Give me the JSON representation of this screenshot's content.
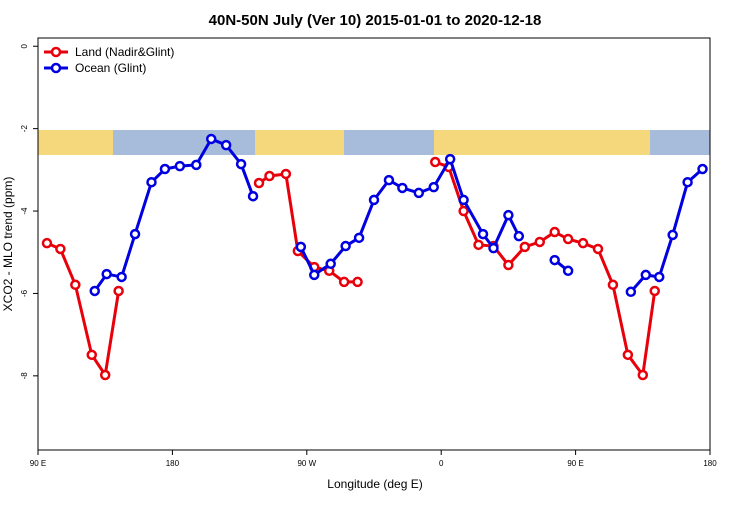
{
  "chart_data": {
    "type": "line",
    "title": "40N-50N July (Ver 10)   2015-01-01 to 2020-12-18",
    "x_label": "Longitude (deg E)",
    "y_label": "XCO2 - MLO trend (ppm)",
    "xlim": [
      90,
      540
    ],
    "xticks": [
      {
        "value": 90,
        "label": "90 E"
      },
      {
        "value": 180,
        "label": "180"
      },
      {
        "value": 270,
        "label": "90 W"
      },
      {
        "value": 360,
        "label": "0"
      },
      {
        "value": 450,
        "label": "90 E"
      },
      {
        "value": 540,
        "label": "180"
      }
    ],
    "ylim": [
      -9.8,
      0.2
    ],
    "yticks": [
      0,
      -2,
      -4,
      -6,
      -8
    ],
    "legend": "top-left",
    "series": [
      {
        "name": "Land (Nadir&Glint)",
        "color": "#e8000b",
        "x": [
          96,
          105,
          115,
          126,
          135,
          144,
          null,
          238,
          245,
          256,
          264,
          275,
          285,
          295,
          304,
          null,
          356,
          365,
          375,
          385,
          395,
          405,
          416,
          426,
          436,
          445,
          455,
          465,
          475,
          485,
          495,
          503
        ],
        "values": [
          -4.78,
          -4.92,
          -5.79,
          -7.49,
          -7.98,
          -5.94,
          null,
          -3.32,
          -3.15,
          -3.1,
          -4.97,
          -5.36,
          -5.45,
          -5.72,
          -5.72,
          null,
          -2.81,
          -2.93,
          -4.0,
          -4.82,
          -4.85,
          -5.31,
          -4.87,
          -4.75,
          -4.51,
          -4.68,
          -4.78,
          -4.92,
          -5.79,
          -7.49,
          -7.98,
          -5.94
        ]
      },
      {
        "name": "Ocean (Glint)",
        "color": "#0000e0",
        "x": [
          128,
          136,
          146,
          155,
          166,
          175,
          185,
          196,
          206,
          216,
          226,
          234,
          null,
          266,
          275,
          286,
          296,
          305,
          315,
          325,
          334,
          345,
          355,
          366,
          375,
          388,
          395,
          405,
          412,
          null,
          436,
          445,
          null,
          487,
          497,
          506,
          515,
          525,
          535
        ],
        "values": [
          -5.94,
          -5.53,
          -5.6,
          -4.56,
          -3.3,
          -2.98,
          -2.91,
          -2.88,
          -2.25,
          -2.4,
          -2.86,
          -3.64,
          null,
          -4.87,
          -5.55,
          -5.28,
          -4.85,
          -4.65,
          -3.73,
          -3.25,
          -3.44,
          -3.56,
          -3.42,
          -2.74,
          -3.73,
          -4.56,
          -4.9,
          -4.1,
          -4.61,
          null,
          -5.19,
          -5.45,
          null,
          -5.96,
          -5.55,
          -5.6,
          -4.58,
          -3.3,
          -2.98
        ]
      }
    ]
  }
}
